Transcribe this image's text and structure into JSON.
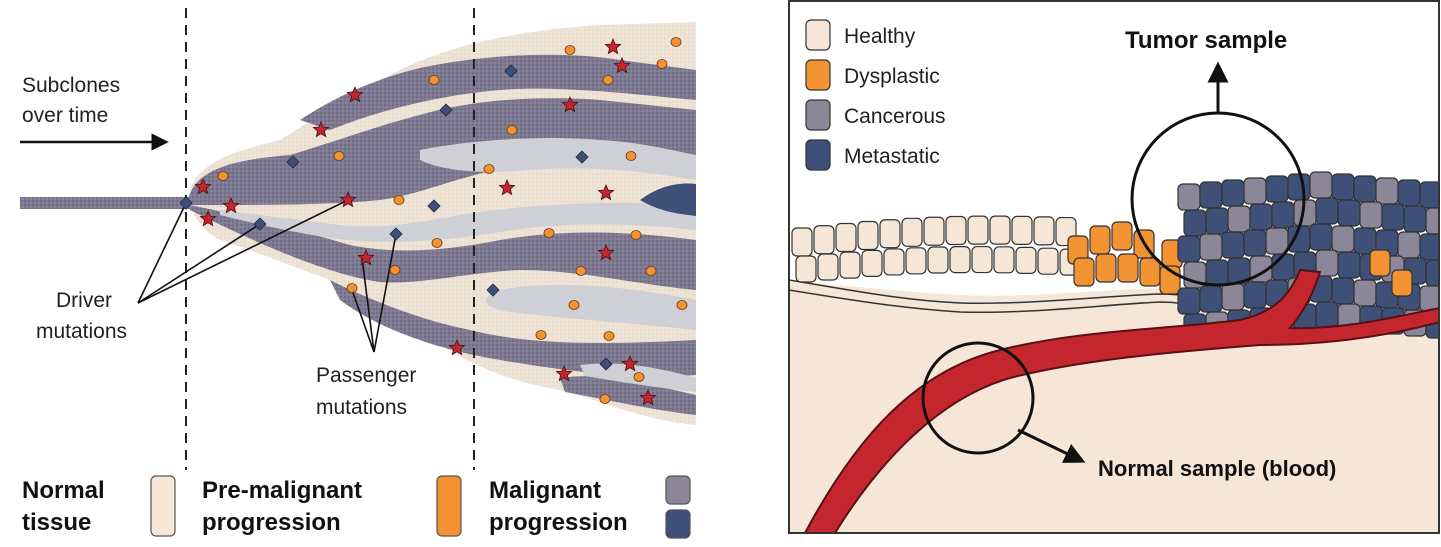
{
  "colors": {
    "healthy": "#f5e6d8",
    "dysplastic": "#f39233",
    "cancerous": "#8b8799",
    "metastatic": "#3e4f78",
    "blood": "#c4262e",
    "subclone_light": "#cfcfd6",
    "subclone_dark": "#7d7a92",
    "driver_star": "#c4262e",
    "passenger_dot": "#f39233",
    "passenger_diamond": "#3e4f78"
  },
  "left_panel": {
    "subclones_line1": "Subclones",
    "subclones_line2": "over time",
    "driver_line1": "Driver",
    "driver_line2": "mutations",
    "passenger_line1": "Passenger",
    "passenger_line2": "mutations",
    "stages": [
      {
        "line1": "Normal",
        "line2": "tissue",
        "swatches": [
          "healthy"
        ]
      },
      {
        "line1": "Pre-malignant",
        "line2": "progression",
        "swatches": [
          "dysplastic"
        ]
      },
      {
        "line1": "Malignant",
        "line2": "progression",
        "swatches": [
          "cancerous",
          "metastatic"
        ]
      }
    ]
  },
  "right_panel": {
    "legend": [
      {
        "label": "Healthy",
        "color": "healthy"
      },
      {
        "label": "Dysplastic",
        "color": "dysplastic"
      },
      {
        "label": "Cancerous",
        "color": "cancerous"
      },
      {
        "label": "Metastatic",
        "color": "metastatic"
      }
    ],
    "tumor_label": "Tumor sample",
    "normal_label": "Normal sample (blood)"
  }
}
